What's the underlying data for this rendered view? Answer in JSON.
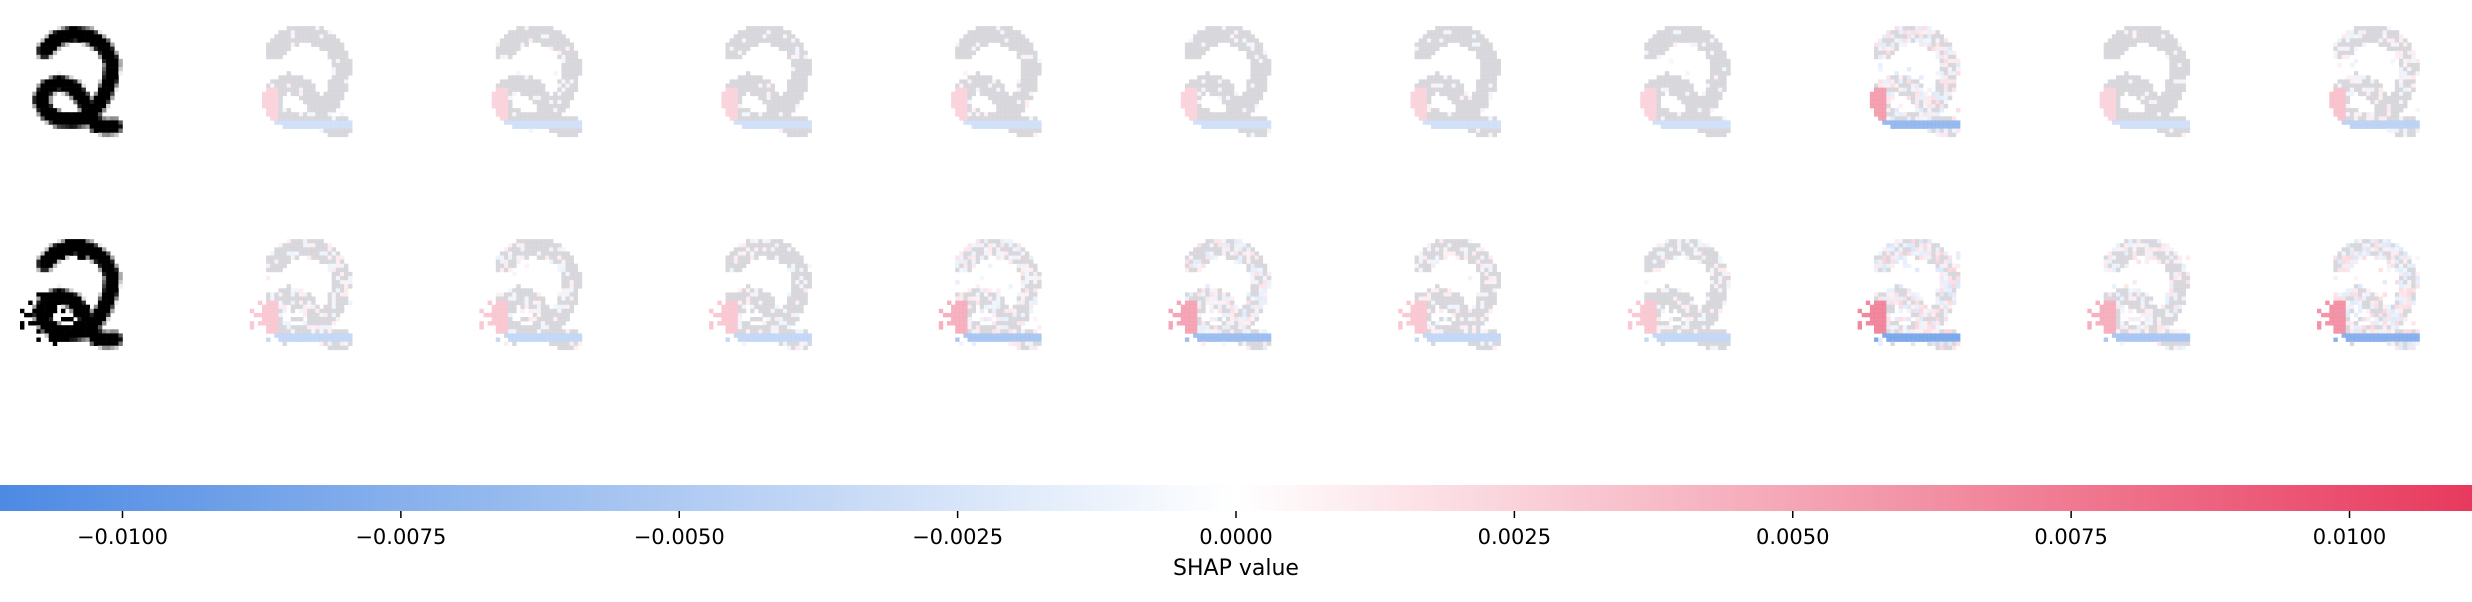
{
  "chart_data": {
    "type": "heatmap",
    "description_kind": "shap-image-plot",
    "rows": [
      {
        "input": "original digit",
        "panels": 11
      },
      {
        "input": "noise-corrupted digit",
        "panels": 11
      }
    ],
    "classes_shown": 10,
    "colorbar": {
      "label": "SHAP value",
      "range": [
        -0.0111,
        0.0111
      ],
      "ticks": [
        -0.01,
        -0.0075,
        -0.005,
        -0.0025,
        0.0,
        0.0025,
        0.005,
        0.0075,
        0.01
      ],
      "tick_labels": [
        "−0.0100",
        "−0.0075",
        "−0.0050",
        "−0.0025",
        "0.0000",
        "0.0025",
        "0.0050",
        "0.0075",
        "0.0100"
      ],
      "colors": {
        "negative": "#4d8ae3",
        "zero": "#ffffff",
        "positive": "#e8395d"
      }
    },
    "attribution_strength": [
      [
        0.35,
        0.35,
        0.35,
        0.35,
        0.35,
        0.35,
        0.35,
        0.8,
        0.35,
        0.5
      ],
      [
        0.45,
        0.45,
        0.45,
        0.65,
        0.75,
        0.45,
        0.45,
        1.0,
        0.65,
        0.9
      ]
    ]
  }
}
